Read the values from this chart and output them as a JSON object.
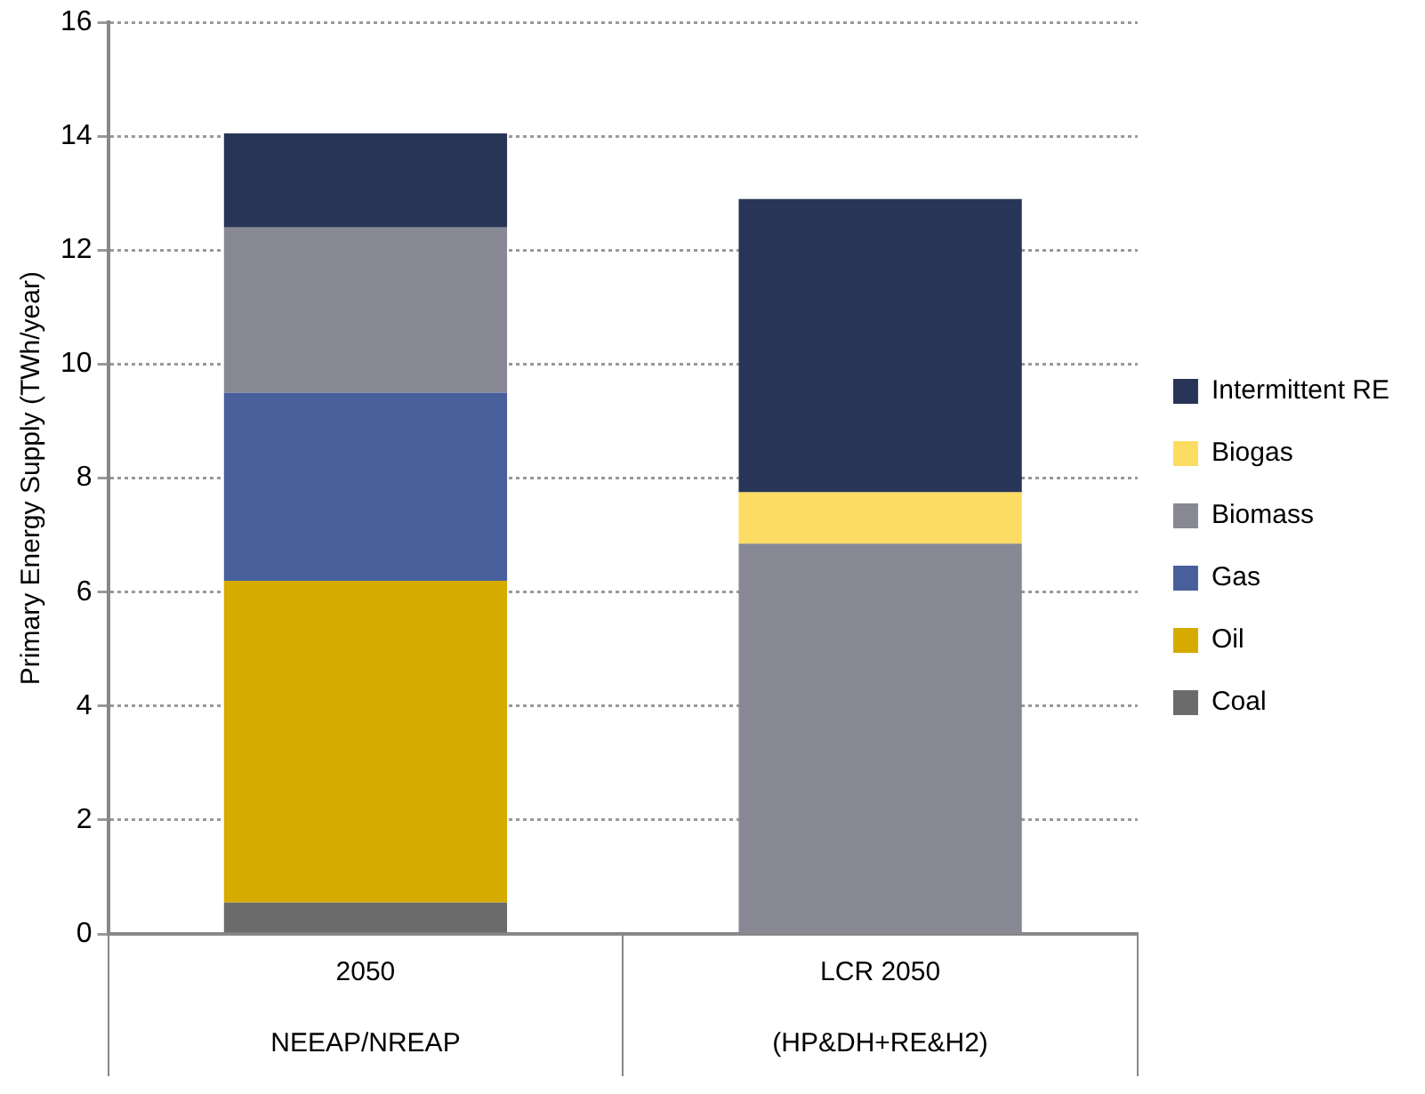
{
  "chart_data": {
    "type": "bar",
    "stacked": true,
    "ylabel": "Primary Energy Supply (TWh/year)",
    "categories": [
      "2050\nNEEAP/NREAP",
      "LCR 2050\n(HP&DH+RE&H2)"
    ],
    "series": [
      {
        "name": "Coal",
        "color": "#6b6b6b",
        "values": [
          0.55,
          null
        ]
      },
      {
        "name": "Oil",
        "color": "#d6ab00",
        "values": [
          5.65,
          null
        ]
      },
      {
        "name": "Gas",
        "color": "#485f9b",
        "values": [
          3.3,
          null
        ]
      },
      {
        "name": "Biomass",
        "color": "#878894",
        "values": [
          2.9,
          6.85
        ]
      },
      {
        "name": "Biogas",
        "color": "#fcdc62",
        "values": [
          null,
          0.9
        ]
      },
      {
        "name": "Intermittent RE",
        "color": "#283556",
        "values": [
          1.65,
          5.15
        ]
      }
    ],
    "ylim": [
      0,
      16
    ],
    "yticks": [
      0,
      2,
      4,
      6,
      8,
      10,
      12,
      14,
      16
    ],
    "grid": "y",
    "legend": "right"
  }
}
